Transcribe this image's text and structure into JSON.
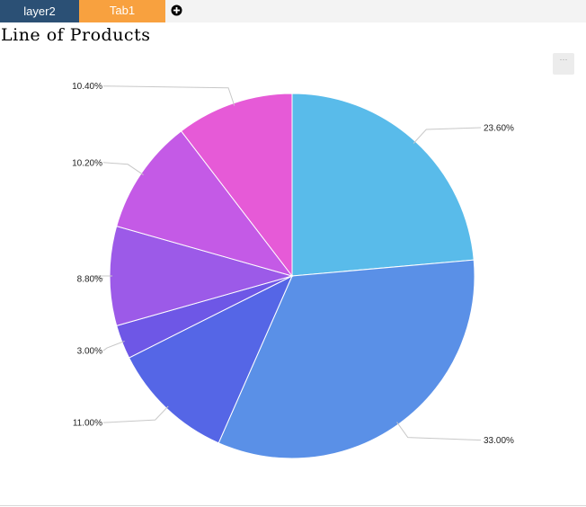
{
  "tabs": [
    {
      "label": "layer2",
      "color": "#2b5075",
      "active": true
    },
    {
      "label": "Tab1",
      "color": "#f8a13f",
      "active": false
    }
  ],
  "add_tab_icon": "plus-circle-icon",
  "menu_icon": "more-horizontal-icon",
  "chart_data": {
    "type": "pie",
    "title": "Line of Products",
    "start_angle_deg": 0,
    "direction": "clockwise",
    "slices": [
      {
        "value": 23.6,
        "label": "23.60%",
        "color": "#59bbea"
      },
      {
        "value": 33.0,
        "label": "33.00%",
        "color": "#5a90e7"
      },
      {
        "value": 11.0,
        "label": "11.00%",
        "color": "#5566e6"
      },
      {
        "value": 3.0,
        "label": "3.00%",
        "color": "#6e57e6"
      },
      {
        "value": 8.8,
        "label": "8.80%",
        "color": "#9c5ae8"
      },
      {
        "value": 10.2,
        "label": "10.20%",
        "color": "#c45ae6"
      },
      {
        "value": 10.4,
        "label": "10.40%",
        "color": "#e65ad7"
      }
    ],
    "legend": false
  }
}
